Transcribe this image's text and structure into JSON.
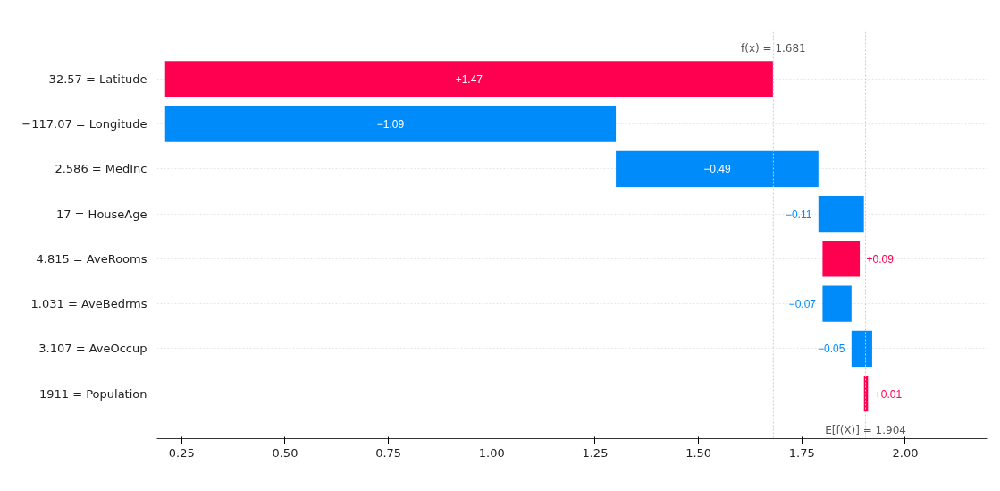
{
  "chart_data": {
    "type": "bar",
    "orientation": "horizontal",
    "categories": [
      "32.57 = Latitude",
      "−117.07 = Longitude",
      "2.586 = MedInc",
      "17 = HouseAge",
      "4.815 = AveRooms",
      "1.031 = AveBedrms",
      "3.107 = AveOccup",
      "1911 = Population"
    ],
    "values": [
      1.47,
      -1.09,
      -0.49,
      -0.11,
      0.09,
      -0.07,
      -0.05,
      0.01
    ],
    "base": [
      0.21,
      1.3,
      1.79,
      1.9,
      1.8,
      1.87,
      1.92,
      1.9
    ],
    "colors": [
      "#ff0051",
      "#008bfb",
      "#008bfb",
      "#008bfb",
      "#ff0051",
      "#008bfb",
      "#008bfb",
      "#ff0051"
    ],
    "value_labels": [
      "+1.47",
      "−1.09",
      "−0.49",
      "−0.11",
      "+0.09",
      "−0.07",
      "−0.05",
      "+0.01"
    ],
    "xlim": [
      0.19,
      2.2
    ],
    "xticks": [
      {
        "value": 0.25,
        "label": "0.25"
      },
      {
        "value": 0.5,
        "label": "0.50"
      },
      {
        "value": 0.75,
        "label": "0.75"
      },
      {
        "value": 1.0,
        "label": "1.00"
      },
      {
        "value": 1.25,
        "label": "1.25"
      },
      {
        "value": 1.5,
        "label": "1.50"
      },
      {
        "value": 1.75,
        "label": "1.75"
      },
      {
        "value": 2.0,
        "label": "2.00"
      }
    ],
    "grid": "y",
    "ref_lines": [
      {
        "axis": "x",
        "value": 1.681,
        "label": "f(x) = 1.681",
        "color": "#cccccc",
        "line_style": "dotted"
      },
      {
        "axis": "x",
        "value": 1.904,
        "label": "E[f(X)] = 1.904",
        "color": "#cccccc",
        "line_style": "dotted"
      }
    ]
  }
}
